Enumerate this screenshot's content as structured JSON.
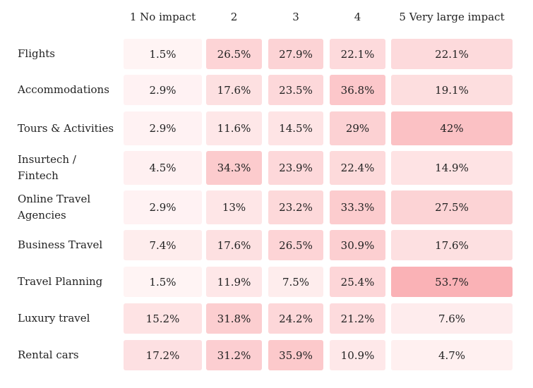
{
  "chart_data": {
    "type": "heatmap",
    "title": "",
    "columns": [
      "1 No impact",
      "2",
      "3",
      "4",
      "5 Very large impact"
    ],
    "rows": [
      {
        "label": "Flights",
        "values": [
          "1.5%",
          "26.5%",
          "27.9%",
          "22.1%",
          "22.1%"
        ]
      },
      {
        "label": "Accommodations",
        "values": [
          "2.9%",
          "17.6%",
          "23.5%",
          "36.8%",
          "19.1%"
        ]
      },
      {
        "label": "Tours & Activities",
        "values": [
          "2.9%",
          "11.6%",
          "14.5%",
          "29%",
          "42%"
        ]
      },
      {
        "label": "Insurtech / Fintech",
        "values": [
          "4.5%",
          "34.3%",
          "23.9%",
          "22.4%",
          "14.9%"
        ]
      },
      {
        "label": "Online Travel Agencies",
        "values": [
          "2.9%",
          "13%",
          "23.2%",
          "33.3%",
          "27.5%"
        ]
      },
      {
        "label": "Business Travel",
        "values": [
          "7.4%",
          "17.6%",
          "26.5%",
          "30.9%",
          "17.6%"
        ]
      },
      {
        "label": "Travel Planning",
        "values": [
          "1.5%",
          "11.9%",
          "7.5%",
          "25.4%",
          "53.7%"
        ]
      },
      {
        "label": "Luxury travel",
        "values": [
          "15.2%",
          "31.8%",
          "24.2%",
          "21.2%",
          "7.6%"
        ]
      },
      {
        "label": "Rental cars",
        "values": [
          "17.2%",
          "31.2%",
          "35.9%",
          "10.9%",
          "4.7%"
        ]
      }
    ],
    "color_scale": {
      "low": "#fff6f6",
      "high": "#fab2b6"
    }
  }
}
